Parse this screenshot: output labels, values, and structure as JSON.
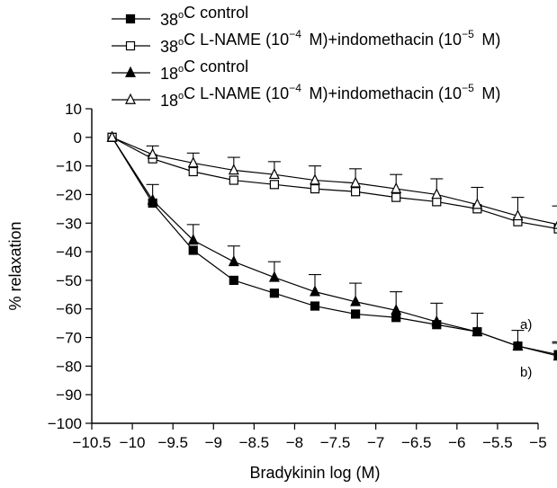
{
  "chart_data": {
    "type": "line",
    "title": "",
    "xlabel": "Bradykinin log (M)",
    "ylabel": "% relaxation",
    "xlim": [
      -10.5,
      -5
    ],
    "ylim": [
      -100,
      10
    ],
    "x_ticks": [
      -10.5,
      -10,
      -9.5,
      -9,
      -8.5,
      -8,
      -7.5,
      -7,
      -6.5,
      -6,
      -5.5,
      -5
    ],
    "x_tick_labels": [
      "−10.5",
      "−10",
      "−9.5",
      "−9",
      "−8.5",
      "−8",
      "−7.5",
      "−7",
      "−6.5",
      "−6",
      "−5.5",
      "−5"
    ],
    "y_ticks": [
      10,
      0,
      -10,
      -20,
      -30,
      -40,
      -50,
      -60,
      -70,
      -80,
      -90,
      -100
    ],
    "y_tick_labels": [
      "10",
      "0",
      "−10",
      "−20",
      "−30",
      "−40",
      "−50",
      "−60",
      "−70",
      "−80",
      "−90",
      "−100"
    ],
    "grid": false,
    "legend_position": "top",
    "x": [
      -10.25,
      -9.75,
      -9.25,
      -8.75,
      -8.25,
      -7.75,
      -7.25,
      -6.75,
      -6.25,
      -5.75,
      -5.25,
      -4.75
    ],
    "series": [
      {
        "legend_label": "38°C control",
        "marker": "filled-square",
        "values": [
          0,
          -23,
          -39.5,
          -50,
          -54.5,
          -59,
          -61.8,
          -63,
          -65.5,
          -68,
          -73,
          -76
        ],
        "errors": [
          0,
          0,
          0,
          0,
          0,
          0,
          0,
          0,
          0,
          0,
          0,
          4
        ]
      },
      {
        "legend_label": "38°C L-NAME (10⁻⁴ M)+indomethacin (10⁻⁵ M)",
        "marker": "open-square",
        "values": [
          0,
          -7.5,
          -12,
          -15,
          -16.5,
          -18,
          -19,
          -21,
          -22.5,
          -25,
          -29.5,
          -32
        ],
        "errors": [
          0,
          0,
          0,
          0,
          0,
          0,
          0,
          0,
          0,
          0,
          0,
          0
        ]
      },
      {
        "legend_label": "18°C control",
        "marker": "filled-triangle",
        "values": [
          0,
          -22,
          -36,
          -43.5,
          -49,
          -54,
          -57.5,
          -60.5,
          -64.5,
          -68,
          -73,
          -76.5
        ],
        "errors": [
          0,
          5.5,
          5.5,
          5.5,
          5.5,
          6,
          6.5,
          6.5,
          6.5,
          6.5,
          5.5,
          5
        ]
      },
      {
        "legend_label": "18°C L-NAME (10⁻⁴ M)+indomethacin (10⁻⁵ M)",
        "marker": "open-triangle",
        "values": [
          0,
          -6,
          -9,
          -11.5,
          -13,
          -15,
          -16,
          -18,
          -20,
          -23.5,
          -27.5,
          -30.5
        ],
        "errors": [
          0,
          3,
          3.5,
          4.5,
          4.5,
          5,
          5,
          5,
          5.5,
          6,
          6.5,
          6.5
        ]
      }
    ],
    "annotations": [
      "a)",
      "b)"
    ]
  }
}
